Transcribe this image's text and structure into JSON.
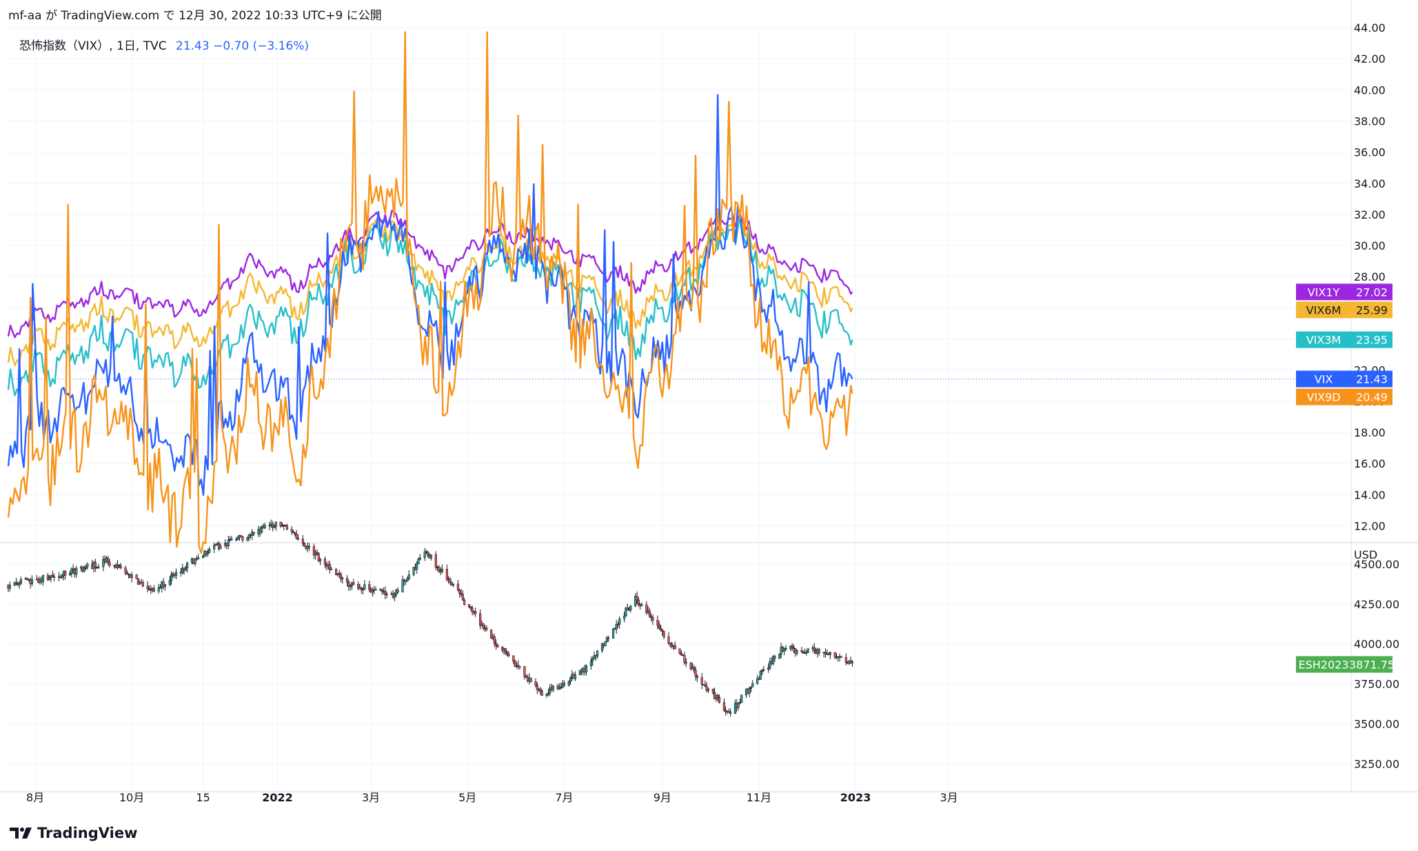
{
  "header": {
    "text": "mf-aa が TradingView.com で 12月 30, 2022 10:33 UTC+9 に公開"
  },
  "legend": {
    "symbol": "恐怖指数（VIX）, 1日, TVC",
    "values": "21.43  −0.70 (−3.16%)"
  },
  "footer": {
    "brand": "TradingView"
  },
  "chart_data": [
    {
      "type": "line",
      "panel": "top",
      "x_axis": {
        "tick_labels": [
          "8月",
          "10月",
          "15",
          "2022",
          "3月",
          "5月",
          "7月",
          "9月",
          "11月",
          "2023",
          "3月"
        ],
        "range": [
          "2021-07-15",
          "2023-04-15"
        ]
      },
      "ylim": [
        11,
        44
      ],
      "y_tick_labels": [
        "12.00",
        "14.00",
        "16.00",
        "18.00",
        "20.00",
        "22.00",
        "24.00",
        "26.00",
        "28.00",
        "30.00",
        "32.00",
        "34.00",
        "36.00",
        "38.00",
        "40.00",
        "42.00",
        "44.00"
      ],
      "price_line": 21.43,
      "x": [
        "2021-07-15",
        "2021-08-15",
        "2021-09-15",
        "2021-10-15",
        "2021-11-15",
        "2021-12-15",
        "2022-01-15",
        "2022-02-15",
        "2022-03-15",
        "2022-04-15",
        "2022-05-15",
        "2022-06-15",
        "2022-07-15",
        "2022-08-15",
        "2022-09-15",
        "2022-10-15",
        "2022-11-15",
        "2022-12-15",
        "2022-12-30"
      ],
      "series": [
        {
          "name": "VIX1Y",
          "color": "#9c27e0",
          "values": [
            24.4,
            26.0,
            27.2,
            26.3,
            25.8,
            29.0,
            27.5,
            30.5,
            32.2,
            28.2,
            31.0,
            30.5,
            29.0,
            27.5,
            29.5,
            32.0,
            28.8,
            28.3,
            27.02
          ]
        },
        {
          "name": "VIX6M",
          "color": "#f5b731",
          "values": [
            22.8,
            24.5,
            26.0,
            24.6,
            24.0,
            27.5,
            26.0,
            29.8,
            31.5,
            26.4,
            30.0,
            29.5,
            27.5,
            25.5,
            28.0,
            31.7,
            27.8,
            27.0,
            25.99
          ]
        },
        {
          "name": "VIX3M",
          "color": "#26bfc9",
          "values": [
            21.2,
            22.5,
            24.5,
            22.8,
            21.5,
            25.2,
            24.8,
            29.2,
            31.0,
            25.0,
            29.2,
            28.8,
            26.5,
            23.8,
            27.2,
            31.5,
            26.5,
            25.4,
            23.95
          ]
        },
        {
          "name": "VIX",
          "color": "#2962ff",
          "values": [
            16.5,
            19.5,
            22.0,
            17.0,
            16.0,
            22.5,
            19.0,
            29.5,
            31.5,
            22.0,
            30.0,
            29.0,
            24.5,
            20.5,
            26.0,
            32.2,
            24.0,
            21.0,
            21.43
          ]
        },
        {
          "name": "VIX9D",
          "color": "#f7931a",
          "values": [
            13.5,
            17.0,
            20.0,
            14.0,
            13.0,
            21.0,
            16.0,
            30.0,
            34.0,
            19.0,
            31.5,
            30.0,
            23.5,
            18.5,
            25.0,
            33.0,
            21.0,
            19.0,
            20.49
          ]
        }
      ]
    },
    {
      "type": "candlestick",
      "panel": "bottom",
      "unit_label": "USD",
      "ylim": [
        3110,
        4620
      ],
      "y_tick_labels": [
        "3250.00",
        "3500.00",
        "3750.00",
        "4000.00",
        "4250.00",
        "4500.00"
      ],
      "x": [
        "2021-07-15",
        "2021-08-15",
        "2021-09-15",
        "2021-10-15",
        "2021-11-15",
        "2021-12-15",
        "2022-01-01",
        "2022-02-15",
        "2022-03-15",
        "2022-04-05",
        "2022-05-15",
        "2022-06-18",
        "2022-07-15",
        "2022-08-15",
        "2022-09-15",
        "2022-10-13",
        "2022-11-15",
        "2022-12-15",
        "2022-12-30"
      ],
      "close": [
        4370,
        4420,
        4520,
        4330,
        4570,
        4690,
        4760,
        4380,
        4300,
        4580,
        4050,
        3680,
        3850,
        4290,
        3900,
        3560,
        3970,
        3950,
        3871.75
      ],
      "last_label": {
        "name": "ESH2023",
        "value": "3871.75",
        "color": "#4caf50"
      }
    }
  ]
}
